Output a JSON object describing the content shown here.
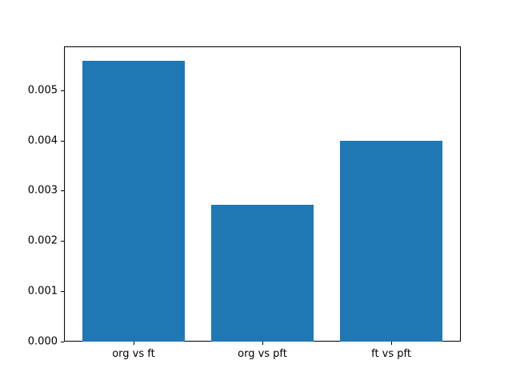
{
  "chart_data": {
    "type": "bar",
    "title": "",
    "xlabel": "",
    "ylabel": "",
    "categories": [
      "org vs ft",
      "org vs pft",
      "ft vs pft"
    ],
    "values": [
      0.00559,
      0.00272,
      0.00399
    ],
    "bar_color": "#1f77b4",
    "bar_width_fraction": 0.8,
    "ylim": [
      0,
      0.00587
    ],
    "yticks": [
      0,
      0.001,
      0.002,
      0.003,
      0.004,
      0.005
    ],
    "ytick_labels": [
      "0.000",
      "0.001",
      "0.002",
      "0.003",
      "0.004",
      "0.005"
    ],
    "grid": false,
    "legend_position": "none",
    "frame_color": "#000000",
    "background_color": "#ffffff"
  }
}
